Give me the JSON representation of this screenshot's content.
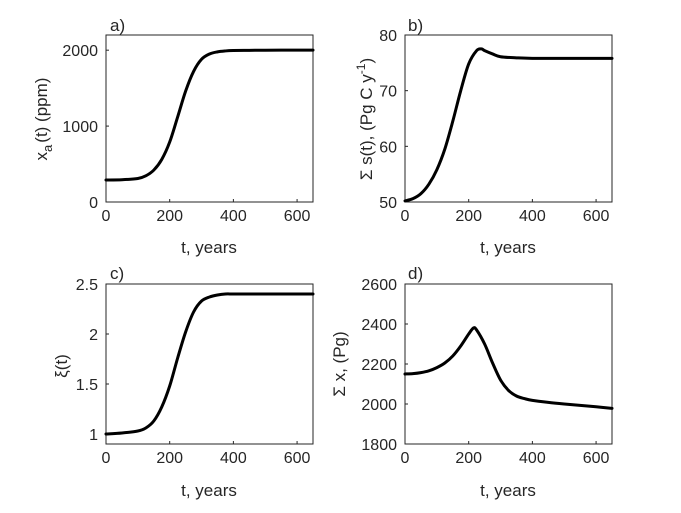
{
  "chart_data": [
    {
      "type": "line",
      "panel_label": "a)",
      "xlabel": "t, years",
      "ylabel": "x_a(t) (ppm)",
      "ylabel_base": "x",
      "ylabel_sub": "a",
      "ylabel_tail": "(t) (ppm)",
      "xlim": [
        0,
        650
      ],
      "ylim": [
        0,
        2200
      ],
      "xticks": [
        0,
        200,
        400,
        600
      ],
      "xtick_labels": [
        "0",
        "200",
        "400",
        "600"
      ],
      "yticks": [
        0,
        1000,
        2000
      ],
      "ytick_labels": [
        "0",
        "1000",
        "2000"
      ],
      "x": [
        0,
        50,
        100,
        125,
        150,
        175,
        200,
        225,
        250,
        275,
        300,
        325,
        350,
        375,
        400,
        450,
        500,
        550,
        600,
        650
      ],
      "y": [
        290,
        293,
        310,
        345,
        420,
        560,
        790,
        1120,
        1460,
        1720,
        1880,
        1950,
        1978,
        1990,
        1995,
        1998,
        1999,
        2000,
        2000,
        2000
      ]
    },
    {
      "type": "line",
      "panel_label": "b)",
      "xlabel": "t, years",
      "ylabel": "Σ s(t), (Pg C y^-1)",
      "ylabel_main": "Σ s(t), (Pg C y",
      "ylabel_sup": "-1",
      "ylabel_close": ")",
      "xlim": [
        0,
        650
      ],
      "ylim": [
        50,
        80
      ],
      "xticks": [
        0,
        200,
        400,
        600
      ],
      "xtick_labels": [
        "0",
        "200",
        "400",
        "600"
      ],
      "yticks": [
        50,
        60,
        70,
        80
      ],
      "ytick_labels": [
        "50",
        "60",
        "70",
        "80"
      ],
      "x": [
        0,
        25,
        50,
        75,
        100,
        125,
        150,
        175,
        200,
        225,
        240,
        250,
        275,
        300,
        350,
        400,
        500,
        600,
        650
      ],
      "y": [
        50.2,
        50.6,
        51.5,
        53.2,
        55.8,
        59.5,
        64.5,
        70.0,
        74.8,
        77.2,
        77.5,
        77.2,
        76.6,
        76.1,
        75.9,
        75.8,
        75.8,
        75.8,
        75.8
      ]
    },
    {
      "type": "line",
      "panel_label": "c)",
      "xlabel": "t, years",
      "ylabel": "ξ(t)",
      "xlim": [
        0,
        650
      ],
      "ylim": [
        0.9,
        2.5
      ],
      "xticks": [
        0,
        200,
        400,
        600
      ],
      "xtick_labels": [
        "0",
        "200",
        "400",
        "600"
      ],
      "yticks": [
        1,
        1.5,
        2,
        2.5
      ],
      "ytick_labels": [
        "1",
        "1.5",
        "2",
        "2.5"
      ],
      "x": [
        0,
        50,
        100,
        125,
        150,
        175,
        200,
        225,
        250,
        275,
        300,
        325,
        350,
        375,
        400,
        450,
        500,
        550,
        600,
        650
      ],
      "y": [
        1.0,
        1.01,
        1.03,
        1.06,
        1.13,
        1.27,
        1.48,
        1.76,
        2.02,
        2.22,
        2.33,
        2.37,
        2.39,
        2.4,
        2.4,
        2.4,
        2.4,
        2.4,
        2.4,
        2.4
      ]
    },
    {
      "type": "line",
      "panel_label": "d)",
      "xlabel": "t, years",
      "ylabel": "Σ x, (Pg)",
      "xlim": [
        0,
        650
      ],
      "ylim": [
        1800,
        2600
      ],
      "xticks": [
        0,
        200,
        400,
        600
      ],
      "xtick_labels": [
        "0",
        "200",
        "400",
        "600"
      ],
      "yticks": [
        1800,
        2000,
        2200,
        2400,
        2600
      ],
      "ytick_labels": [
        "1800",
        "2000",
        "2200",
        "2400",
        "2600"
      ],
      "x": [
        0,
        25,
        50,
        75,
        100,
        125,
        150,
        175,
        200,
        215,
        225,
        250,
        275,
        300,
        325,
        350,
        375,
        400,
        450,
        500,
        550,
        600,
        650
      ],
      "y": [
        2150,
        2152,
        2157,
        2166,
        2182,
        2205,
        2240,
        2290,
        2350,
        2380,
        2370,
        2300,
        2205,
        2120,
        2068,
        2040,
        2027,
        2018,
        2008,
        2000,
        1993,
        1986,
        1978
      ]
    }
  ]
}
